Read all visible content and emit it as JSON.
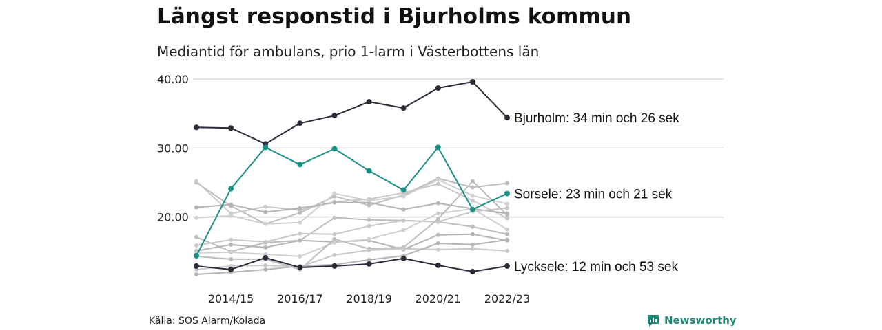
{
  "title": "Längst responstid i Bjurholms kommun",
  "subtitle": "Mediantid för ambulans, prio 1-larm i Västerbottens län",
  "source": "Källa: SOS Alarm/Kolada",
  "brand": {
    "name": "Newsworthy",
    "icon": "newsworthy-logo-icon",
    "color": "#1f8a78"
  },
  "chart_data": {
    "type": "line",
    "ylim": [
      11,
      40
    ],
    "yticks": [
      "40.00",
      "30.00",
      "20.00"
    ],
    "ytick_values": [
      40,
      30,
      20
    ],
    "x": [
      "2013/14",
      "2014/15",
      "2015/16",
      "2016/17",
      "2017/18",
      "2018/19",
      "2019/20",
      "2020/21",
      "2021/22",
      "2022/23"
    ],
    "xtick_labels": [
      "2014/15",
      "2016/17",
      "2018/19",
      "2020/21",
      "2022/23"
    ],
    "grid": true,
    "colors": {
      "highlight_dark": "#2b2b38",
      "highlight_teal": "#1a9085",
      "background": "#c4c4c4"
    },
    "highlighted": [
      {
        "name": "Bjurholm",
        "label": "Bjurholm: 34 min och 26 sek",
        "color": "#2b2b38",
        "values": [
          33.0,
          32.9,
          30.6,
          33.6,
          34.7,
          36.7,
          35.8,
          38.7,
          39.6,
          34.4
        ]
      },
      {
        "name": "Sorsele",
        "label": "Sorsele: 23 min och 21 sek",
        "color": "#1a9085",
        "values": [
          14.4,
          24.1,
          30.1,
          27.6,
          29.9,
          26.7,
          23.9,
          30.1,
          21.1,
          23.4
        ]
      },
      {
        "name": "Lycksele",
        "label": "Lycksele: 12 min och 53 sek",
        "color": "#2b2b38",
        "values": [
          12.9,
          12.4,
          14.1,
          12.7,
          12.9,
          13.2,
          14.0,
          13.0,
          12.1,
          12.9
        ]
      }
    ],
    "background_series": [
      {
        "values": [
          25.0,
          21.6,
          19.0,
          20.6,
          23.0,
          21.7,
          23.2,
          25.6,
          24.3,
          24.9
        ]
      },
      {
        "values": [
          25.2,
          20.5,
          21.5,
          21.0,
          22.2,
          22.6,
          23.5,
          24.8,
          22.4,
          19.8
        ]
      },
      {
        "values": [
          21.4,
          21.8,
          20.7,
          21.3,
          22.1,
          22.1,
          21.1,
          22.0,
          21.2,
          20.5
        ]
      },
      {
        "values": [
          19.9,
          20.2,
          19.0,
          19.2,
          23.4,
          22.4,
          23.0,
          25.4,
          23.1,
          21.9
        ]
      },
      {
        "values": [
          17.1,
          15.0,
          16.3,
          16.6,
          19.9,
          19.6,
          19.5,
          19.3,
          18.6,
          17.5
        ]
      },
      {
        "values": [
          15.9,
          16.7,
          16.4,
          17.6,
          17.5,
          18.7,
          19.5,
          19.3,
          20.8,
          21.3
        ]
      },
      {
        "values": [
          15.1,
          16.0,
          15.6,
          16.6,
          16.4,
          16.6,
          15.3,
          17.4,
          17.5,
          16.6
        ]
      },
      {
        "values": [
          14.8,
          14.9,
          14.6,
          14.3,
          16.3,
          16.8,
          18.1,
          20.5,
          21.2,
          18.2
        ]
      },
      {
        "values": [
          14.3,
          13.9,
          13.9,
          12.4,
          16.8,
          15.4,
          15.6,
          19.7,
          25.2,
          20.3
        ]
      },
      {
        "values": [
          12.4,
          12.9,
          13.0,
          12.8,
          14.5,
          15.2,
          15.4,
          15.3,
          15.4,
          15.1
        ]
      },
      {
        "values": [
          11.7,
          12.0,
          12.4,
          12.9,
          13.1,
          13.8,
          14.4,
          16.2,
          16.0,
          16.7
        ]
      }
    ]
  }
}
